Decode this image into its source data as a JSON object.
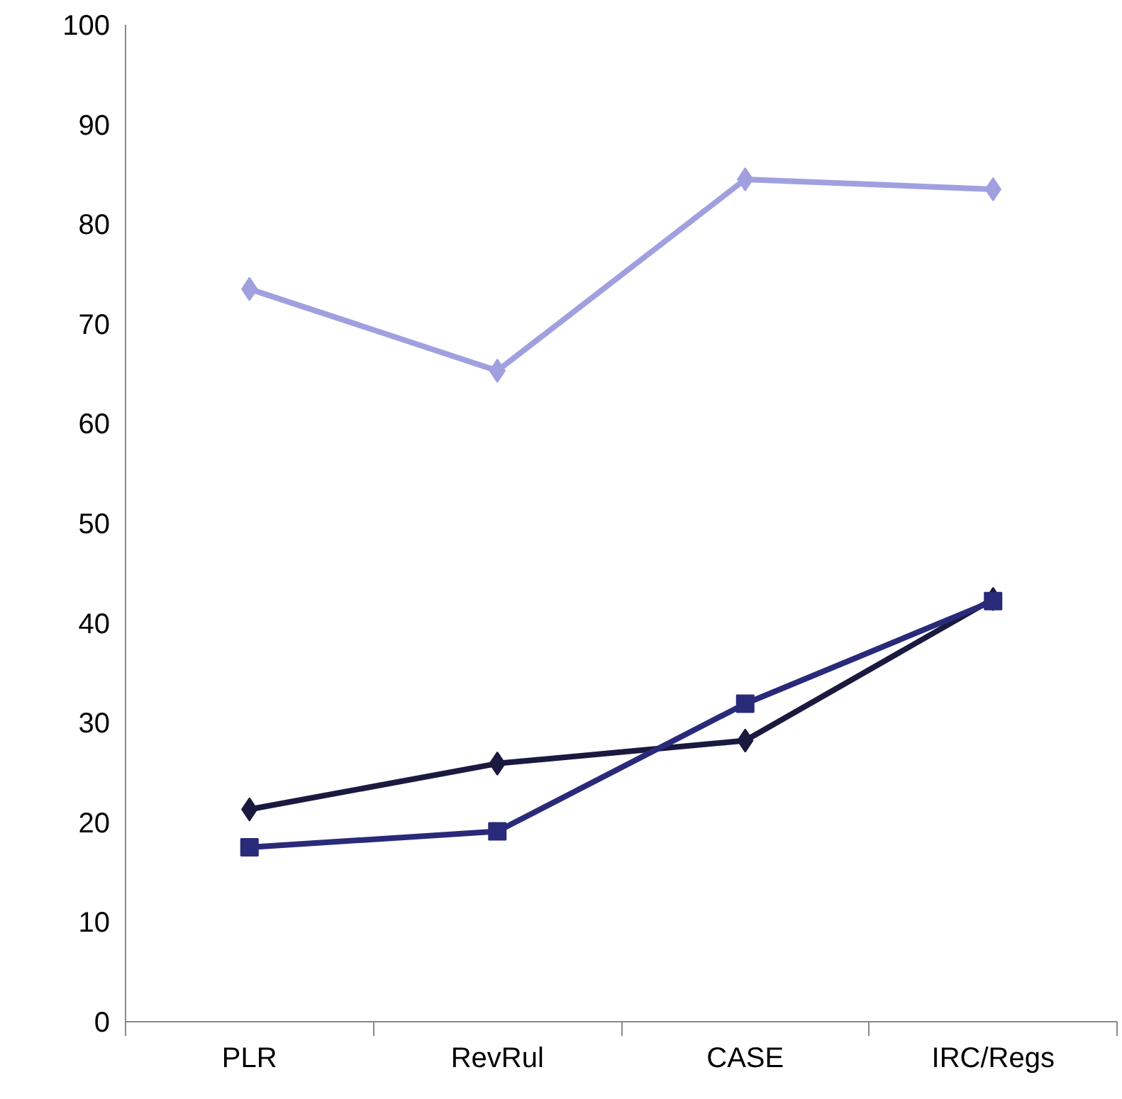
{
  "chart_data": {
    "type": "line",
    "categories": [
      "PLR",
      "RevRul",
      "CASE",
      "IRC/Regs"
    ],
    "ylim": [
      0,
      100
    ],
    "yticks": [
      0,
      10,
      20,
      30,
      40,
      50,
      60,
      70,
      80,
      90,
      100
    ],
    "line_style": "solid",
    "series": [
      {
        "color": "#a0a0e0",
        "marker": "diamond",
        "values": [
          73.5,
          65.3,
          84.5,
          83.5
        ]
      },
      {
        "color": "#1a1a40",
        "marker": "diamond",
        "values": [
          21.3,
          25.9,
          28.2,
          42.4
        ]
      },
      {
        "color": "#2a2a7a",
        "marker": "square",
        "values": [
          17.5,
          19.1,
          31.9,
          42.2
        ]
      }
    ]
  }
}
